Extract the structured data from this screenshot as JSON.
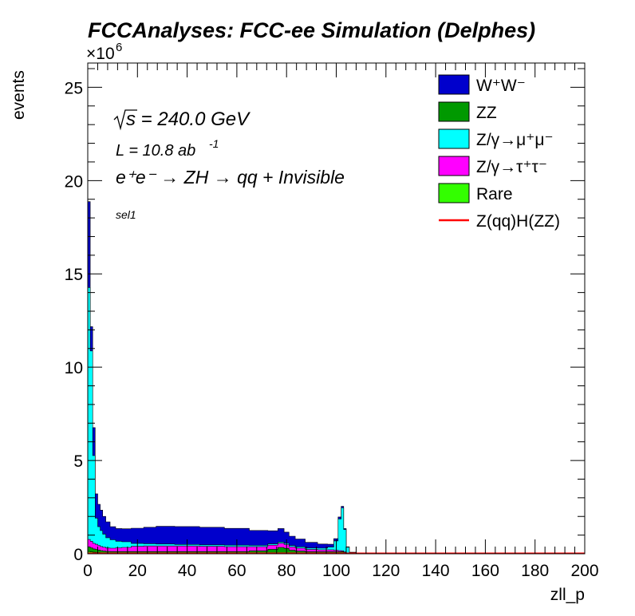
{
  "chart_data": {
    "type": "area",
    "title": "FCCAnalyses: FCC-ee Simulation (Delphes)",
    "xlabel": "zll_p",
    "ylabel": "events",
    "y_exponent": "×10",
    "y_exponent_power": "6",
    "xlim": [
      0,
      200
    ],
    "ylim": [
      0,
      26.3
    ],
    "x_ticks": [
      "0",
      "20",
      "40",
      "60",
      "80",
      "100",
      "120",
      "140",
      "160",
      "180",
      "200"
    ],
    "y_ticks": [
      "0",
      "5",
      "10",
      "15",
      "20",
      "25"
    ],
    "annotations": {
      "sqrt_s": "s = 240.0 GeV",
      "lumi": "L = 10.8 ab",
      "lumi_power": "-1",
      "process": "e⁺e⁻ → ZH → qq + Invisible",
      "selection": "sel1"
    },
    "legend_position": "top-right",
    "x": [
      0.5,
      1.5,
      2.5,
      3.5,
      4.5,
      5.5,
      6.5,
      8,
      10,
      12.5,
      15,
      20,
      25,
      30,
      40,
      50,
      60,
      70,
      75,
      78,
      80,
      82,
      85,
      90,
      95,
      98,
      100,
      101.5,
      102.5,
      103.5,
      104.5,
      106,
      110,
      150,
      200
    ],
    "stack": [
      {
        "name": "Rare",
        "color": "#33ff00",
        "values": [
          0.12,
          0.1,
          0.08,
          0.07,
          0.06,
          0.05,
          0.05,
          0.04,
          0.04,
          0.04,
          0.04,
          0.04,
          0.04,
          0.04,
          0.04,
          0.04,
          0.04,
          0.04,
          0.04,
          0.04,
          0.04,
          0.04,
          0.04,
          0.03,
          0.03,
          0.03,
          0.03,
          0.03,
          0.03,
          0.02,
          0.01,
          0,
          0,
          0,
          0
        ]
      },
      {
        "name": "ZZ",
        "color": "#009900",
        "values": [
          0.25,
          0.22,
          0.18,
          0.16,
          0.14,
          0.12,
          0.1,
          0.09,
          0.08,
          0.08,
          0.08,
          0.08,
          0.08,
          0.08,
          0.08,
          0.08,
          0.08,
          0.12,
          0.2,
          0.3,
          0.25,
          0.15,
          0.1,
          0.08,
          0.08,
          0.08,
          0.08,
          0.08,
          0.08,
          0.05,
          0.02,
          0.01,
          0,
          0,
          0
        ]
      },
      {
        "name": "Z/γ→τ⁺τ⁻",
        "color": "#ff00ff",
        "values": [
          0.4,
          0.35,
          0.3,
          0.28,
          0.25,
          0.22,
          0.2,
          0.18,
          0.18,
          0.2,
          0.22,
          0.28,
          0.3,
          0.3,
          0.3,
          0.28,
          0.26,
          0.22,
          0.22,
          0.22,
          0.2,
          0.18,
          0.16,
          0.12,
          0.1,
          0.1,
          0.08,
          0.06,
          0.05,
          0.03,
          0.02,
          0.01,
          0,
          0,
          0
        ]
      },
      {
        "name": "Z/γ→μ⁺μ⁻",
        "color": "#00ffff",
        "values": [
          13.5,
          10.2,
          4.7,
          1.4,
          1.0,
          0.85,
          0.7,
          0.55,
          0.45,
          0.35,
          0.3,
          0.15,
          0.12,
          0.1,
          0.08,
          0.08,
          0.08,
          0.07,
          0.07,
          0.07,
          0.07,
          0.07,
          0.07,
          0.08,
          0.09,
          0.15,
          0.5,
          1.7,
          2.3,
          1.2,
          0.3,
          0.05,
          0,
          0,
          0
        ]
      },
      {
        "name": "W⁺W⁻",
        "color": "#0000cc",
        "values": [
          4.6,
          1.3,
          1.5,
          1.3,
          1.2,
          1.1,
          0.95,
          0.85,
          0.7,
          0.68,
          0.7,
          0.82,
          0.88,
          0.95,
          0.96,
          0.94,
          0.9,
          0.8,
          0.7,
          0.72,
          0.6,
          0.5,
          0.42,
          0.3,
          0.22,
          0.15,
          0.12,
          0.1,
          0.08,
          0.05,
          0.02,
          0.01,
          0,
          0,
          0
        ]
      }
    ],
    "signal": {
      "name": "Z(qq)H(ZZ)",
      "color": "#ff0000",
      "values": [
        0.002,
        0.002,
        0.002,
        0.002,
        0.002,
        0.002,
        0.002,
        0.002,
        0.002,
        0.002,
        0.002,
        0.002,
        0.002,
        0.002,
        0.002,
        0.002,
        0.002,
        0.002,
        0.002,
        0.002,
        0.002,
        0.002,
        0.002,
        0.002,
        0.002,
        0.002,
        0.002,
        0.002,
        0.002,
        0.002,
        0.002,
        0.002,
        0.002,
        0.002,
        0.002
      ]
    },
    "legend": [
      {
        "label": "W⁺W⁻",
        "color": "#0000cc",
        "kind": "box"
      },
      {
        "label": "ZZ",
        "color": "#009900",
        "kind": "box"
      },
      {
        "label": "Z/γ→μ⁺μ⁻",
        "color": "#00ffff",
        "kind": "box"
      },
      {
        "label": "Z/γ→τ⁺τ⁻",
        "color": "#ff00ff",
        "kind": "box"
      },
      {
        "label": "Rare",
        "color": "#33ff00",
        "kind": "box"
      },
      {
        "label": "Z(qq)H(ZZ)",
        "color": "#ff0000",
        "kind": "line"
      }
    ]
  }
}
